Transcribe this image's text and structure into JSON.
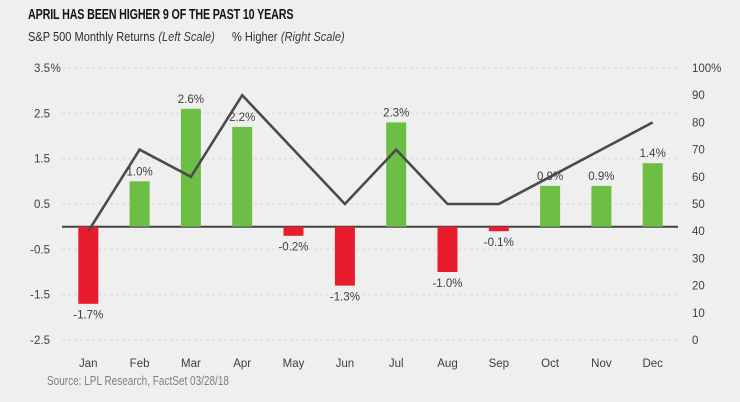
{
  "header": {
    "title": "APRIL HAS BEEN HIGHER 9 OF THE PAST 10 YEARS",
    "legend_left": {
      "label": "S&P 500 Monthly Returns",
      "scale_note": "(Left Scale)"
    },
    "legend_right": {
      "label": "% Higher",
      "scale_note": "(Right Scale)"
    }
  },
  "source": "Source: LPL Research, FactSet 03/28/18",
  "colors": {
    "background": "#f0efef",
    "bar_positive": "#6cbe45",
    "bar_negative": "#e81c2d",
    "line": "#4a4b4d",
    "gridline": "#d8d8d8",
    "zero_line": "#434345",
    "tick_text": "#3e3e40",
    "title_text": "#141414",
    "source_text": "#7d7f82"
  },
  "chart_data": {
    "type": "bar+line combo",
    "categories": [
      "Jan",
      "Feb",
      "Mar",
      "Apr",
      "May",
      "Jun",
      "Jul",
      "Aug",
      "Sep",
      "Oct",
      "Nov",
      "Dec"
    ],
    "series": [
      {
        "name": "S&P 500 Monthly Returns",
        "type": "bar",
        "axis": "left",
        "values": [
          -1.7,
          1.0,
          2.6,
          2.2,
          -0.2,
          -1.3,
          2.3,
          -1.0,
          -0.1,
          0.9,
          0.9,
          1.4
        ],
        "labels": [
          "-1.7%",
          "1.0%",
          "2.6%",
          "2.2%",
          "-0.2%",
          "-1.3%",
          "2.3%",
          "-1.0%",
          "-0.1%",
          "0.9%",
          "0.9%",
          "1.4%"
        ]
      },
      {
        "name": "% Higher",
        "type": "line",
        "axis": "right",
        "values": [
          40,
          70,
          60,
          90,
          70,
          50,
          70,
          50,
          50,
          60,
          70,
          80
        ]
      }
    ],
    "left_axis": {
      "title": "S&P 500 Monthly Returns (Left Scale)",
      "ticks": [
        "3.5%",
        "2.5",
        "1.5",
        "0.5",
        "-0.5",
        "-1.5",
        "-2.5"
      ],
      "tick_values": [
        3.5,
        2.5,
        1.5,
        0.5,
        -0.5,
        -1.5,
        -2.5
      ],
      "min": -2.5,
      "max": 3.5
    },
    "right_axis": {
      "title": "% Higher (Right Scale)",
      "ticks": [
        "100%",
        "90",
        "80",
        "70",
        "60",
        "50",
        "40",
        "30",
        "20",
        "10",
        "0"
      ],
      "tick_values": [
        100,
        90,
        80,
        70,
        60,
        50,
        40,
        30,
        20,
        10,
        0
      ],
      "min": 0,
      "max": 100
    },
    "grid": "horizontal dashed at left-axis whole-percent steps",
    "legend_position": "top-left, text only"
  }
}
